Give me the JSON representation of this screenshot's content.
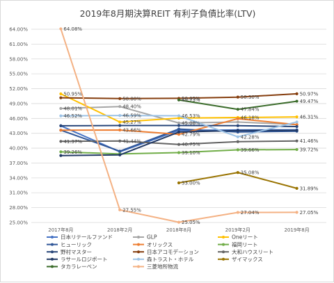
{
  "chart_data": {
    "type": "line",
    "title": "2019年8月期決算REIT 有利子負債比率(LTV)",
    "xlabel": "",
    "ylabel": "",
    "categories": [
      "2017年8月",
      "2018年2月",
      "2018年8月",
      "2019年2月",
      "2019年8月"
    ],
    "ylim": [
      25.0,
      64.0
    ],
    "yticks": [
      "25.00%",
      "28.00%",
      "31.00%",
      "34.00%",
      "37.00%",
      "40.00%",
      "43.00%",
      "46.00%",
      "49.00%",
      "52.00%",
      "55.00%",
      "58.00%",
      "61.00%",
      "64.00%"
    ],
    "ytick_values": [
      25,
      28,
      31,
      34,
      37,
      40,
      43,
      46,
      49,
      52,
      55,
      58,
      61,
      64
    ],
    "grid": true,
    "legend_position": "bottom",
    "series": [
      {
        "name": "日本リテールファンド",
        "color": "#4472c4",
        "values": [
          44.52,
          39.27,
          43.58,
          43.67,
          43.7
        ],
        "labels": [
          "",
          "",
          "",
          "",
          ""
        ]
      },
      {
        "name": "GLP",
        "color": "#a5a5a5",
        "values": [
          48.01,
          48.4,
          45.08,
          45.27,
          44.77
        ],
        "labels": [
          "48.01%",
          "48.40%",
          "45.08%",
          "",
          ""
        ]
      },
      {
        "name": "Oneリート",
        "color": "#ffc000",
        "values": [
          50.95,
          45.27,
          46.06,
          46.18,
          46.31
        ],
        "labels": [
          "50.95%",
          "45.27%",
          "",
          "46.18%",
          "46.31%"
        ]
      },
      {
        "name": "ヒューリック",
        "color": "#2e5597",
        "values": [
          43.63,
          39.4,
          43.86,
          43.26,
          43.42
        ],
        "labels": [
          "",
          "",
          "",
          "",
          ""
        ]
      },
      {
        "name": "オリックス",
        "color": "#ed7d31",
        "values": [
          43.62,
          43.66,
          42.79,
          45.95,
          44.75
        ],
        "labels": [
          "",
          "43.66%",
          "42.79%",
          "",
          ""
        ]
      },
      {
        "name": "福岡リート",
        "color": "#70ad47",
        "values": [
          39.26,
          38.83,
          39.1,
          39.66,
          39.72
        ],
        "labels": [
          "39.26%",
          "",
          "39.10%",
          "39.66%",
          "39.72%"
        ]
      },
      {
        "name": "野村マスター",
        "color": "#264478",
        "values": [
          44.52,
          44.57,
          44.57,
          44.53,
          44.36
        ],
        "labels": [
          "",
          "",
          "",
          "",
          ""
        ]
      },
      {
        "name": "日本アコモデーション",
        "color": "#843c0c",
        "values": [
          50.17,
          50.0,
          50.05,
          50.3,
          50.97
        ],
        "labels": [
          "",
          "50.00%",
          "50.05%",
          "50.30%",
          "50.97%"
        ]
      },
      {
        "name": "大和ハウスリート",
        "color": "#636363",
        "values": [
          41.37,
          41.44,
          40.75,
          41.31,
          41.46
        ],
        "labels": [
          "41.37%",
          "41.44%",
          "40.75%",
          "",
          "41.46%"
        ]
      },
      {
        "name": "ラサールロジポート",
        "color": "#203864",
        "values": [
          38.51,
          38.64,
          43.25,
          43.56,
          43.59
        ],
        "labels": [
          "",
          "",
          "",
          "",
          ""
        ]
      },
      {
        "name": "森トラスト・ホテル",
        "color": "#9dc3e6",
        "values": [
          46.52,
          46.59,
          46.53,
          42.28,
          45.28
        ],
        "labels": [
          "46.52%",
          "46.59%",
          "46.53%",
          "42.28%",
          ""
        ]
      },
      {
        "name": "ザイマックス",
        "color": "#997300",
        "values": [
          null,
          null,
          33.0,
          35.08,
          31.89
        ],
        "labels": [
          "",
          "",
          "33.00%",
          "35.08%",
          "31.89%"
        ]
      },
      {
        "name": "タカラレーベン",
        "color": "#3a6b2a",
        "values": [
          null,
          null,
          49.73,
          47.84,
          49.47
        ],
        "labels": [
          "",
          "",
          "49.73%",
          "47.84%",
          "49.47%"
        ]
      },
      {
        "name": "三菱地所物流",
        "color": "#f4b183",
        "values": [
          64.08,
          27.55,
          25.05,
          27.04,
          27.05
        ],
        "labels": [
          "64.08%",
          "27.55%",
          "25.05%",
          "27.04%",
          "27.05%"
        ]
      }
    ]
  }
}
